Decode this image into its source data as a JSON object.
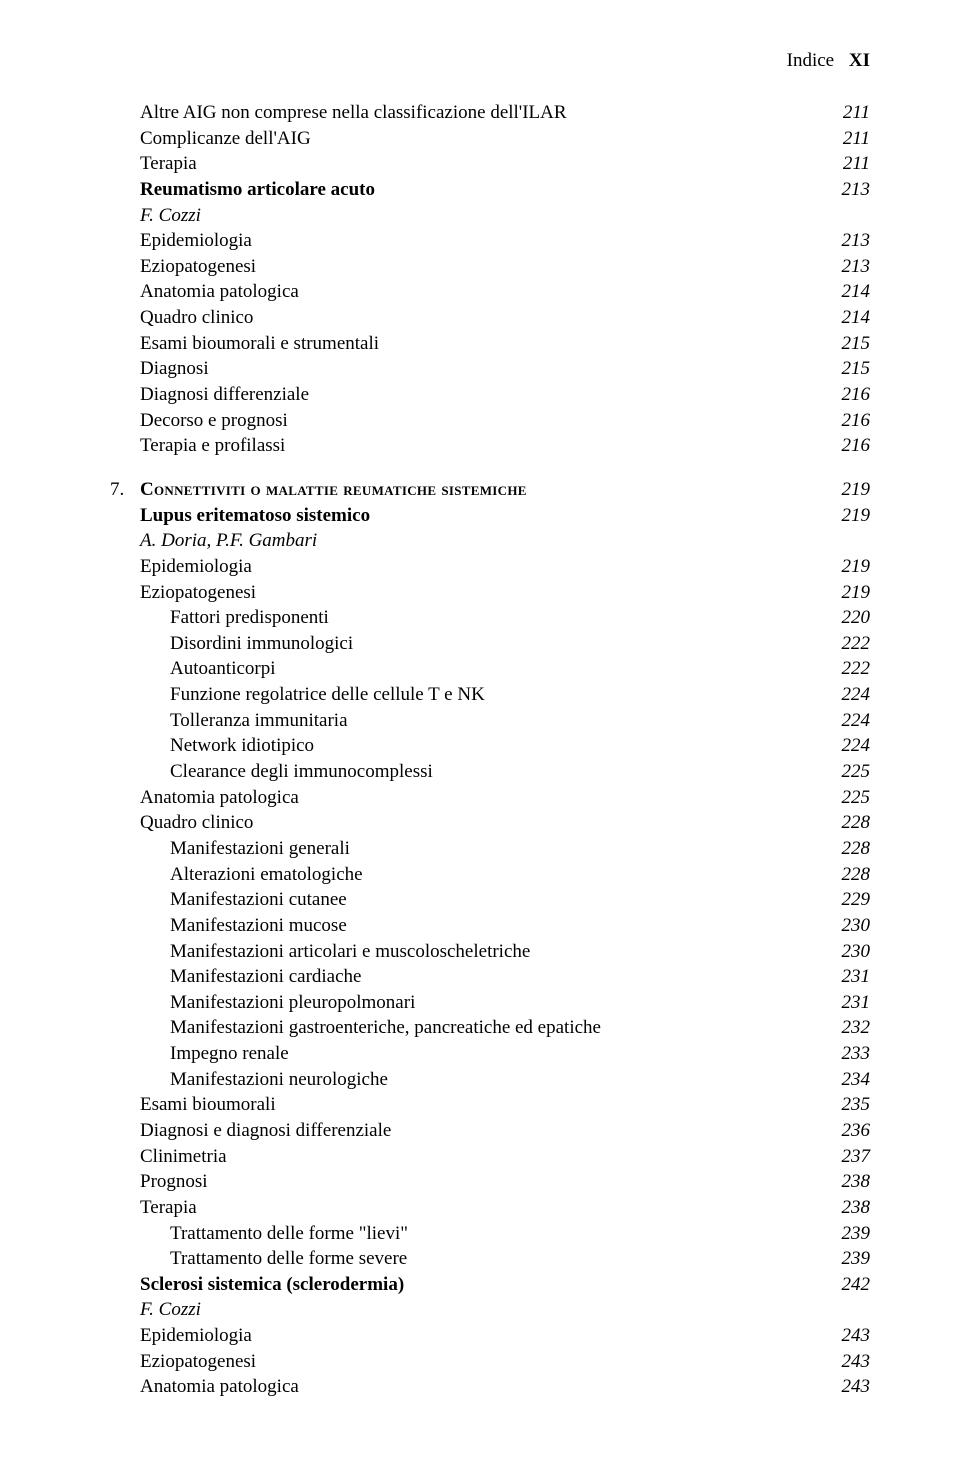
{
  "header": {
    "label": "Indice",
    "roman": "XI"
  },
  "entries": [
    {
      "level": 1,
      "label": "Altre AIG non comprese nella classificazione dell'ILAR",
      "page": "211"
    },
    {
      "level": 1,
      "label": "Complicanze dell'AIG",
      "page": "211"
    },
    {
      "level": 1,
      "label": "Terapia",
      "page": "211"
    },
    {
      "level": 1,
      "label": "Reumatismo articolare acuto",
      "page": "213",
      "bold": true
    },
    {
      "level": 1,
      "label": "F. Cozzi",
      "italic": true
    },
    {
      "level": 1,
      "label": "Epidemiologia",
      "page": "213"
    },
    {
      "level": 1,
      "label": "Eziopatogenesi",
      "page": "213"
    },
    {
      "level": 1,
      "label": "Anatomia patologica",
      "page": "214"
    },
    {
      "level": 1,
      "label": "Quadro clinico",
      "page": "214"
    },
    {
      "level": 1,
      "label": "Esami bioumorali e strumentali",
      "page": "215"
    },
    {
      "level": 1,
      "label": "Diagnosi",
      "page": "215"
    },
    {
      "level": 1,
      "label": "Diagnosi differenziale",
      "page": "216"
    },
    {
      "level": 1,
      "label": "Decorso e prognosi",
      "page": "216"
    },
    {
      "level": 1,
      "label": "Terapia e profilassi",
      "page": "216"
    },
    {
      "gap": true
    },
    {
      "level": 0,
      "num": "7.",
      "label": "Connettiviti o malattie reumatiche sistemiche",
      "page": "219",
      "bold": true,
      "smallcaps": true
    },
    {
      "level": 1,
      "label": "Lupus eritematoso sistemico",
      "page": "219",
      "bold": true
    },
    {
      "level": 1,
      "label": "A. Doria, P.F. Gambari",
      "italic": true
    },
    {
      "level": 1,
      "label": "Epidemiologia",
      "page": "219"
    },
    {
      "level": 1,
      "label": "Eziopatogenesi",
      "page": "219"
    },
    {
      "level": 2,
      "label": "Fattori predisponenti",
      "page": "220"
    },
    {
      "level": 2,
      "label": "Disordini immunologici",
      "page": "222"
    },
    {
      "level": 2,
      "label": "Autoanticorpi",
      "page": "222"
    },
    {
      "level": 2,
      "label": "Funzione regolatrice delle cellule T e NK",
      "page": "224"
    },
    {
      "level": 2,
      "label": "Tolleranza immunitaria",
      "page": "224"
    },
    {
      "level": 2,
      "label": "Network idiotipico",
      "page": "224"
    },
    {
      "level": 2,
      "label": "Clearance degli immunocomplessi",
      "page": "225"
    },
    {
      "level": 1,
      "label": "Anatomia patologica",
      "page": "225"
    },
    {
      "level": 1,
      "label": "Quadro clinico",
      "page": "228"
    },
    {
      "level": 2,
      "label": "Manifestazioni generali",
      "page": "228"
    },
    {
      "level": 2,
      "label": "Alterazioni ematologiche",
      "page": "228"
    },
    {
      "level": 2,
      "label": "Manifestazioni cutanee",
      "page": "229"
    },
    {
      "level": 2,
      "label": "Manifestazioni mucose",
      "page": "230"
    },
    {
      "level": 2,
      "label": "Manifestazioni articolari e muscoloscheletriche",
      "page": "230"
    },
    {
      "level": 2,
      "label": "Manifestazioni cardiache",
      "page": "231"
    },
    {
      "level": 2,
      "label": "Manifestazioni pleuropolmonari",
      "page": "231"
    },
    {
      "level": 2,
      "label": "Manifestazioni gastroenteriche, pancreatiche ed epatiche",
      "page": "232"
    },
    {
      "level": 2,
      "label": "Impegno renale",
      "page": "233"
    },
    {
      "level": 2,
      "label": "Manifestazioni neurologiche",
      "page": "234"
    },
    {
      "level": 1,
      "label": "Esami bioumorali",
      "page": "235"
    },
    {
      "level": 1,
      "label": "Diagnosi e diagnosi differenziale",
      "page": "236"
    },
    {
      "level": 1,
      "label": "Clinimetria",
      "page": "237"
    },
    {
      "level": 1,
      "label": "Prognosi",
      "page": "238"
    },
    {
      "level": 1,
      "label": "Terapia",
      "page": "238"
    },
    {
      "level": 2,
      "label": "Trattamento delle forme \"lievi\"",
      "page": "239"
    },
    {
      "level": 2,
      "label": "Trattamento delle forme severe",
      "page": "239"
    },
    {
      "level": 1,
      "label": "Sclerosi sistemica (sclerodermia)",
      "page": "242",
      "bold": true
    },
    {
      "level": 1,
      "label": "F. Cozzi",
      "italic": true
    },
    {
      "level": 1,
      "label": "Epidemiologia",
      "page": "243"
    },
    {
      "level": 1,
      "label": "Eziopatogenesi",
      "page": "243"
    },
    {
      "level": 1,
      "label": "Anatomia patologica",
      "page": "243"
    }
  ]
}
